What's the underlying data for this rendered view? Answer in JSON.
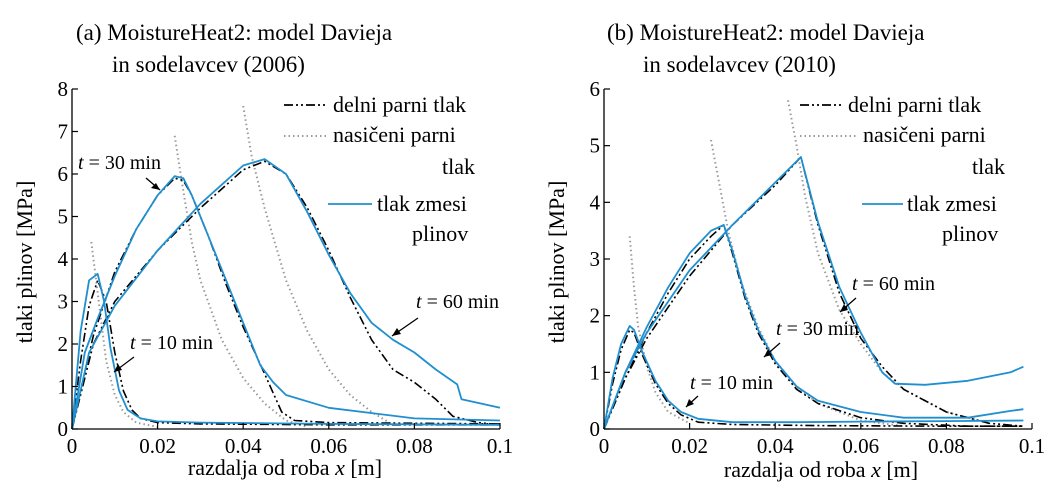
{
  "charts": [
    {
      "title_line1": "(a) MoistureHeat2: model Davieja",
      "title_line2": "in sodelavcev (2006)",
      "xlabel": "razdalja od roba",
      "xlabel_var": "x",
      "xlabel_unit": "[m]",
      "ylabel": "tlaki plinov [MPa]",
      "xticks": [
        "0",
        "0.02",
        "0.04",
        "0.06",
        "0.08",
        "0.1"
      ],
      "yticks": [
        "0",
        "1",
        "2",
        "3",
        "4",
        "5",
        "6",
        "7",
        "8"
      ],
      "legend": [
        "delni parni tlak",
        "nasičeni parni",
        "tlak",
        "tlak zmesi",
        "plinov"
      ],
      "annotations": [
        {
          "var": "t",
          "text": "= 30 min"
        },
        {
          "var": "t",
          "text": "= 10 min"
        },
        {
          "var": "t",
          "text": "= 60 min"
        }
      ]
    },
    {
      "title_line1": "(b) MoistureHeat2: model Davieja",
      "title_line2": "in sodelavcev (2010)",
      "xlabel": "razdalja od roba",
      "xlabel_var": "x",
      "xlabel_unit": "[m]",
      "ylabel": "tlaki plinov [MPa]",
      "xticks": [
        "0",
        "0.02",
        "0.04",
        "0.06",
        "0.08",
        "0.1"
      ],
      "yticks": [
        "0",
        "1",
        "2",
        "3",
        "4",
        "5",
        "6"
      ],
      "legend": [
        "delni parni tlak",
        "nasičeni parni",
        "tlak",
        "tlak zmesi",
        "plinov"
      ],
      "annotations": [
        {
          "var": "t",
          "text": "= 60 min"
        },
        {
          "var": "t",
          "text": "= 30 min"
        },
        {
          "var": "t",
          "text": "= 10 min"
        }
      ]
    }
  ],
  "colors": {
    "partial": "#000000",
    "saturated": "#9a9a9a",
    "mixture": "#1f8fd0"
  },
  "chart_data": [
    {
      "type": "line",
      "title": "(a) MoistureHeat2: model Davieja in sodelavcev (2006)",
      "xlabel": "razdalja od roba x [m]",
      "ylabel": "tlaki plinov [MPa]",
      "xlim": [
        0,
        0.1
      ],
      "ylim": [
        0,
        8
      ],
      "grid": false,
      "legend_position": "top-right",
      "series": [
        {
          "name": "delni parni tlak",
          "style": "dash-dot",
          "curve": "t = 10 min",
          "x": [
            0,
            0.002,
            0.004,
            0.006,
            0.008,
            0.01,
            0.012,
            0.014,
            0.016,
            0.02,
            0.03,
            0.06,
            0.1
          ],
          "y": [
            0,
            1.6,
            2.9,
            3.5,
            3.0,
            1.8,
            0.9,
            0.45,
            0.25,
            0.15,
            0.12,
            0.1,
            0.1
          ]
        },
        {
          "name": "delni parni tlak",
          "style": "dash-dot",
          "curve": "t = 30 min",
          "x": [
            0,
            0.005,
            0.01,
            0.015,
            0.02,
            0.024,
            0.026,
            0.028,
            0.032,
            0.036,
            0.04,
            0.045,
            0.049,
            0.052,
            0.06,
            0.1
          ],
          "y": [
            0,
            2.2,
            3.7,
            4.7,
            5.5,
            5.9,
            5.85,
            5.5,
            4.5,
            3.4,
            2.4,
            1.3,
            0.4,
            0.2,
            0.15,
            0.12
          ]
        },
        {
          "name": "delni parni tlak",
          "style": "dash-dot",
          "curve": "t = 60 min",
          "x": [
            0,
            0.005,
            0.01,
            0.02,
            0.03,
            0.04,
            0.045,
            0.05,
            0.055,
            0.06,
            0.065,
            0.07,
            0.075,
            0.08,
            0.085,
            0.089,
            0.095,
            0.1
          ],
          "y": [
            0,
            2.0,
            3.0,
            4.2,
            5.2,
            6.1,
            6.3,
            6.0,
            5.2,
            4.2,
            3.1,
            2.1,
            1.4,
            1.1,
            0.7,
            0.3,
            0.15,
            0.1
          ]
        },
        {
          "name": "nasičeni parni tlak",
          "style": "dotted",
          "curve": "t = 10 min",
          "x": [
            0.0045,
            0.006,
            0.008,
            0.01,
            0.012,
            0.015,
            0.02
          ],
          "y": [
            4.4,
            3.2,
            1.6,
            0.8,
            0.4,
            0.15,
            0.05
          ]
        },
        {
          "name": "nasičeni parni tlak",
          "style": "dotted",
          "curve": "t = 30 min",
          "x": [
            0.024,
            0.026,
            0.028,
            0.03,
            0.035,
            0.04,
            0.045,
            0.05,
            0.055
          ],
          "y": [
            6.9,
            5.6,
            4.4,
            3.5,
            2.1,
            1.2,
            0.6,
            0.2,
            0.05
          ]
        },
        {
          "name": "nasičeni parni tlak",
          "style": "dotted",
          "curve": "t = 60 min",
          "x": [
            0.04,
            0.042,
            0.045,
            0.05,
            0.055,
            0.06,
            0.065,
            0.07,
            0.075
          ],
          "y": [
            7.6,
            6.4,
            5.2,
            3.5,
            2.3,
            1.4,
            0.8,
            0.4,
            0.1
          ]
        },
        {
          "name": "tlak zmesi plinov",
          "style": "solid",
          "curve": "t = 10 min",
          "x": [
            0,
            0.002,
            0.004,
            0.006,
            0.0075,
            0.009,
            0.011,
            0.013,
            0.016,
            0.02,
            0.03,
            0.06,
            0.1
          ],
          "y": [
            0,
            2.3,
            3.5,
            3.65,
            3.0,
            1.9,
            0.9,
            0.45,
            0.25,
            0.18,
            0.15,
            0.12,
            0.1
          ]
        },
        {
          "name": "tlak zmesi plinov",
          "style": "solid",
          "curve": "t = 30 min",
          "x": [
            0,
            0.003,
            0.006,
            0.01,
            0.015,
            0.02,
            0.024,
            0.026,
            0.028,
            0.032,
            0.036,
            0.04,
            0.044,
            0.047,
            0.05,
            0.06,
            0.08,
            0.1
          ],
          "y": [
            0,
            1.8,
            2.6,
            3.6,
            4.7,
            5.5,
            5.95,
            5.9,
            5.5,
            4.5,
            3.5,
            2.5,
            1.5,
            1.1,
            0.8,
            0.5,
            0.25,
            0.2
          ]
        },
        {
          "name": "tlak zmesi plinov",
          "style": "solid",
          "curve": "t = 60 min",
          "x": [
            0,
            0.004,
            0.01,
            0.02,
            0.03,
            0.04,
            0.045,
            0.05,
            0.055,
            0.06,
            0.065,
            0.07,
            0.075,
            0.08,
            0.085,
            0.09,
            0.091,
            0.1
          ],
          "y": [
            0,
            1.8,
            2.9,
            4.2,
            5.3,
            6.2,
            6.35,
            6.0,
            5.1,
            4.1,
            3.2,
            2.5,
            2.1,
            1.8,
            1.4,
            1.05,
            0.7,
            0.5
          ]
        }
      ]
    },
    {
      "type": "line",
      "title": "(b) MoistureHeat2: model Davieja in sodelavcev (2010)",
      "xlabel": "razdalja od roba x [m]",
      "ylabel": "tlaki plinov [MPa]",
      "xlim": [
        0,
        0.1
      ],
      "ylim": [
        0,
        6
      ],
      "grid": false,
      "legend_position": "top-right",
      "series": [
        {
          "name": "delni parni tlak",
          "style": "dash-dot",
          "curve": "t = 10 min",
          "x": [
            0,
            0.002,
            0.004,
            0.006,
            0.007,
            0.009,
            0.012,
            0.015,
            0.018,
            0.022,
            0.03,
            0.05,
            0.08,
            0.098
          ],
          "y": [
            0,
            0.8,
            1.4,
            1.75,
            1.7,
            1.3,
            0.8,
            0.45,
            0.25,
            0.12,
            0.08,
            0.06,
            0.05,
            0.05
          ]
        },
        {
          "name": "delni parni tlak",
          "style": "dash-dot",
          "curve": "t = 30 min",
          "x": [
            0,
            0.005,
            0.01,
            0.015,
            0.02,
            0.025,
            0.028,
            0.03,
            0.033,
            0.036,
            0.04,
            0.045,
            0.05,
            0.06,
            0.07,
            0.085,
            0.098
          ],
          "y": [
            0,
            0.9,
            1.7,
            2.4,
            3.0,
            3.4,
            3.6,
            3.1,
            2.3,
            1.7,
            1.15,
            0.7,
            0.45,
            0.2,
            0.1,
            0.05,
            0.05
          ]
        },
        {
          "name": "delni parni tlak",
          "style": "dash-dot",
          "curve": "t = 60 min",
          "x": [
            0,
            0.005,
            0.01,
            0.02,
            0.03,
            0.04,
            0.046,
            0.05,
            0.055,
            0.06,
            0.065,
            0.07,
            0.08,
            0.09,
            0.098
          ],
          "y": [
            0,
            0.9,
            1.6,
            2.7,
            3.6,
            4.3,
            4.8,
            3.6,
            2.4,
            1.6,
            1.1,
            0.7,
            0.3,
            0.1,
            0.05
          ]
        },
        {
          "name": "nasičeni parni tlak",
          "style": "dotted",
          "curve": "t = 10 min",
          "x": [
            0.006,
            0.007,
            0.008,
            0.01,
            0.012,
            0.015,
            0.02
          ],
          "y": [
            3.4,
            2.5,
            1.8,
            1.1,
            0.65,
            0.3,
            0.1
          ]
        },
        {
          "name": "nasičeni parni tlak",
          "style": "dotted",
          "curve": "t = 30 min",
          "x": [
            0.025,
            0.027,
            0.029,
            0.032,
            0.036,
            0.04,
            0.045,
            0.05,
            0.06,
            0.07
          ],
          "y": [
            5.1,
            4.3,
            3.5,
            2.6,
            1.8,
            1.2,
            0.75,
            0.45,
            0.15,
            0.05
          ]
        },
        {
          "name": "nasičeni parni tlak",
          "style": "dotted",
          "curve": "t = 60 min",
          "x": [
            0.043,
            0.045,
            0.047,
            0.05,
            0.055,
            0.06,
            0.065,
            0.07,
            0.08,
            0.09
          ],
          "y": [
            5.8,
            5.0,
            4.1,
            3.1,
            2.1,
            1.5,
            1.0,
            0.7,
            0.3,
            0.1
          ]
        },
        {
          "name": "tlak zmesi plinov",
          "style": "solid",
          "curve": "t = 10 min",
          "x": [
            0,
            0.002,
            0.004,
            0.006,
            0.007,
            0.009,
            0.012,
            0.015,
            0.018,
            0.022,
            0.03,
            0.045,
            0.06,
            0.08,
            0.098
          ],
          "y": [
            0,
            0.9,
            1.5,
            1.82,
            1.75,
            1.35,
            0.85,
            0.5,
            0.3,
            0.18,
            0.12,
            0.12,
            0.13,
            0.14,
            0.15
          ]
        },
        {
          "name": "tlak zmesi plinov",
          "style": "solid",
          "curve": "t = 30 min",
          "x": [
            0,
            0.005,
            0.01,
            0.015,
            0.02,
            0.025,
            0.028,
            0.03,
            0.033,
            0.036,
            0.04,
            0.045,
            0.05,
            0.06,
            0.07,
            0.085,
            0.095,
            0.098
          ],
          "y": [
            0,
            1.0,
            1.8,
            2.5,
            3.1,
            3.5,
            3.6,
            3.15,
            2.35,
            1.75,
            1.2,
            0.75,
            0.5,
            0.3,
            0.2,
            0.2,
            0.32,
            0.35
          ]
        },
        {
          "name": "tlak zmesi plinov",
          "style": "solid",
          "curve": "t = 60 min",
          "x": [
            0,
            0.005,
            0.01,
            0.02,
            0.03,
            0.04,
            0.046,
            0.05,
            0.055,
            0.06,
            0.065,
            0.068,
            0.075,
            0.085,
            0.095,
            0.098
          ],
          "y": [
            0,
            1.0,
            1.7,
            2.8,
            3.6,
            4.35,
            4.8,
            3.65,
            2.5,
            1.7,
            1.0,
            0.8,
            0.78,
            0.85,
            1.0,
            1.1
          ]
        }
      ]
    }
  ]
}
